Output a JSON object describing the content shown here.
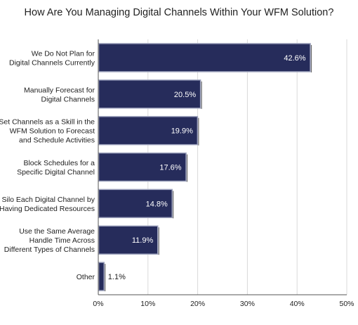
{
  "chart_data": {
    "type": "bar",
    "orientation": "horizontal",
    "title": "How Are You Managing Digital Channels Within Your WFM Solution?",
    "categories": [
      [
        "We Do Not Plan for",
        "Digital Channels Currently"
      ],
      [
        "Manually Forecast for",
        "Digital Channels"
      ],
      [
        "Set Channels as a Skill in the",
        "WFM Solution to Forecast",
        "and Schedule Activities"
      ],
      [
        "Block Schedules for a",
        "Specific Digital Channel"
      ],
      [
        "Silo Each Digital Channel by",
        "Having Dedicated Resources"
      ],
      [
        "Use the Same Average",
        "Handle Time Across",
        "Different Types of Channels"
      ],
      [
        "Other"
      ]
    ],
    "values": [
      42.6,
      20.5,
      19.9,
      17.6,
      14.8,
      11.9,
      1.1
    ],
    "value_labels": [
      "42.6%",
      "20.5%",
      "19.9%",
      "17.6%",
      "14.8%",
      "11.9%",
      "1.1%"
    ],
    "x_ticks": [
      "0%",
      "10%",
      "20%",
      "30%",
      "40%",
      "50%"
    ],
    "xlim": [
      0,
      50
    ],
    "grid": "vertical",
    "colors": {
      "bar": "#262c5b",
      "bar_border": "#9ea3bd",
      "grid": "#d9d9d9",
      "axis": "#555555"
    }
  }
}
